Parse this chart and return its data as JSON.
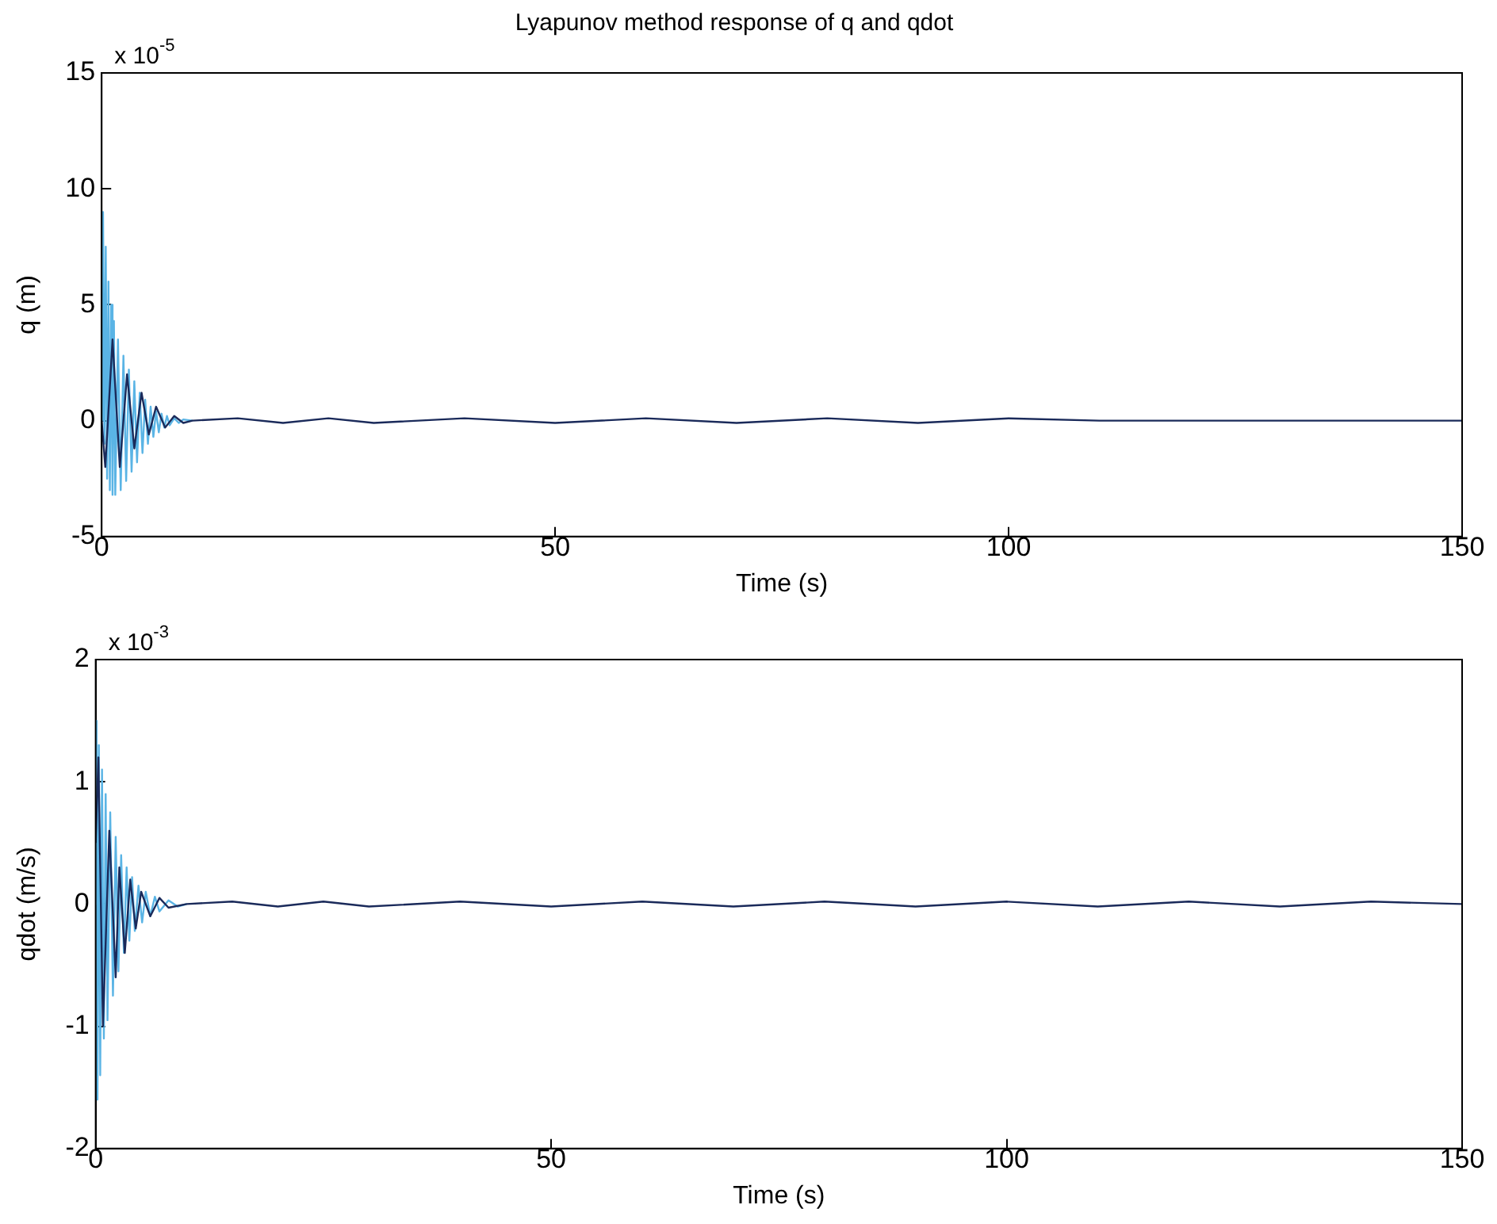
{
  "chart_data": [
    {
      "type": "line",
      "title": "Lyapunov method response of q and qdot",
      "xlabel": "Time (s)",
      "ylabel": "q (m)",
      "annotations": [
        "x 10$^{-5}$"
      ],
      "series": [
        {
          "color": "#5ab4e5",
          "x": [
            0,
            0.15,
            0.3,
            0.45,
            0.6,
            0.75,
            0.9,
            1.05,
            1.2,
            1.35,
            1.5,
            1.8,
            2.1,
            2.4,
            2.7,
            3,
            3.3,
            3.6,
            3.9,
            4.2,
            4.5,
            4.8,
            5.1,
            5.4,
            5.7,
            6,
            6.3,
            6.6,
            6.9,
            7.2,
            7.5,
            8,
            8.5,
            9,
            10
          ],
          "values": [
            0,
            9,
            -1,
            7.5,
            -2.5,
            6,
            -3,
            5,
            -3.2,
            4.3,
            -3.2,
            3.5,
            -3,
            2.8,
            -2.6,
            2.2,
            -2.2,
            1.7,
            -1.8,
            1.2,
            -1.4,
            0.9,
            -1,
            0.6,
            -0.7,
            0.4,
            -0.5,
            0.3,
            -0.3,
            0.2,
            -0.2,
            0.1,
            -0.1,
            0.05,
            0
          ]
        },
        {
          "color": "#1a2a5a",
          "x": [
            0,
            0.4,
            1.2,
            2,
            2.8,
            3.6,
            4.4,
            5.2,
            6,
            7,
            8,
            9,
            10,
            15,
            20,
            25,
            30,
            40,
            50,
            60,
            70,
            80,
            90,
            100,
            110,
            150
          ],
          "values": [
            0,
            -2,
            3.5,
            -2,
            2,
            -1.2,
            1.2,
            -0.6,
            0.6,
            -0.3,
            0.2,
            -0.1,
            0,
            0.1,
            -0.1,
            0.1,
            -0.1,
            0.1,
            -0.1,
            0.1,
            -0.1,
            0.1,
            -0.1,
            0.1,
            0,
            0
          ]
        }
      ],
      "xlim": [
        0,
        150
      ],
      "xticks": [
        0,
        50,
        100,
        150
      ],
      "ylim": [
        -5,
        15
      ],
      "yticks": [
        -5,
        0,
        5,
        10,
        15
      ],
      "marker": "none",
      "line_style": "solid",
      "legend": false
    },
    {
      "type": "line",
      "xlabel": "Time (s)",
      "ylabel": "qdot (m/s)",
      "annotations": [
        "x 10$^{-3}$"
      ],
      "series": [
        {
          "color": "#5ab4e5",
          "x": [
            0,
            0.1,
            0.2,
            0.35,
            0.5,
            0.7,
            0.9,
            1.1,
            1.3,
            1.6,
            1.9,
            2.2,
            2.5,
            2.8,
            3.1,
            3.4,
            3.7,
            4,
            4.3,
            4.7,
            5.1,
            5.5,
            6,
            6.5,
            7,
            8,
            9,
            10
          ],
          "values": [
            0,
            1.5,
            -1.6,
            1.3,
            -1.4,
            1.1,
            -1.1,
            0.9,
            -0.95,
            0.75,
            -0.75,
            0.55,
            -0.55,
            0.4,
            -0.4,
            0.3,
            -0.3,
            0.22,
            -0.22,
            0.15,
            -0.15,
            0.1,
            -0.1,
            0.06,
            -0.06,
            0.03,
            -0.02,
            0
          ]
        },
        {
          "color": "#1a2a5a",
          "x": [
            0,
            0.3,
            0.8,
            1.5,
            2.2,
            2.6,
            3.2,
            3.8,
            4.4,
            5,
            6,
            7,
            8,
            10,
            15,
            20,
            25,
            30,
            40,
            50,
            60,
            70,
            80,
            90,
            100,
            110,
            120,
            130,
            140,
            150
          ],
          "values": [
            0.5,
            1.2,
            -1,
            0.6,
            -0.6,
            0.3,
            -0.4,
            0.2,
            -0.2,
            0.1,
            -0.1,
            0.05,
            -0.03,
            0,
            0.02,
            -0.02,
            0.02,
            -0.02,
            0.02,
            -0.02,
            0.02,
            -0.02,
            0.02,
            -0.02,
            0.02,
            -0.02,
            0.02,
            -0.02,
            0.02,
            0
          ]
        }
      ],
      "xlim": [
        0,
        150
      ],
      "xticks": [
        0,
        50,
        100,
        150
      ],
      "ylim": [
        -2,
        2
      ],
      "yticks": [
        -2,
        -1,
        0,
        1,
        2
      ],
      "marker": "none",
      "line_style": "solid",
      "legend": false
    }
  ]
}
